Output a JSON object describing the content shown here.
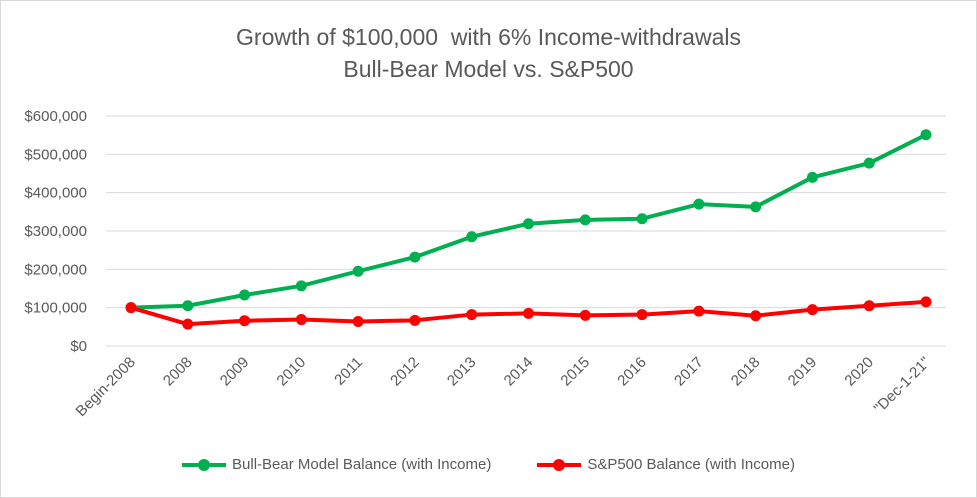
{
  "chart_data": {
    "type": "line",
    "title": "Growth of $100,000  with 6% Income-withdrawals",
    "subtitle": "Bull-Bear Model vs. S&P500",
    "xlabel": "",
    "ylabel": "",
    "categories": [
      "Begin-2008",
      "2008",
      "2009",
      "2010",
      "2011",
      "2012",
      "2013",
      "2014",
      "2015",
      "2016",
      "2017",
      "2018",
      "2019",
      "2020",
      "\"Dec-1-21\""
    ],
    "ylim": [
      0,
      600000
    ],
    "yticks": [
      {
        "value": 0,
        "label": "$0"
      },
      {
        "value": 100000,
        "label": "$100,000"
      },
      {
        "value": 200000,
        "label": "$200,000"
      },
      {
        "value": 300000,
        "label": "$300,000"
      },
      {
        "value": 400000,
        "label": "$400,000"
      },
      {
        "value": 500000,
        "label": "$500,000"
      },
      {
        "value": 600000,
        "label": "$600,000"
      }
    ],
    "grid": true,
    "legend_position": "bottom",
    "series": [
      {
        "name": "Bull-Bear Model Balance (with Income)",
        "color": "#00b050",
        "values": [
          100000,
          105000,
          133000,
          157000,
          195000,
          232000,
          285000,
          319000,
          329000,
          332000,
          370000,
          363000,
          440000,
          477000,
          551000
        ]
      },
      {
        "name": "S&P500 Balance (with Income)",
        "color": "#ff0000",
        "values": [
          100000,
          57000,
          66000,
          69000,
          64000,
          67000,
          82000,
          85000,
          80000,
          82000,
          91000,
          79000,
          95000,
          105000,
          115000
        ]
      }
    ]
  }
}
